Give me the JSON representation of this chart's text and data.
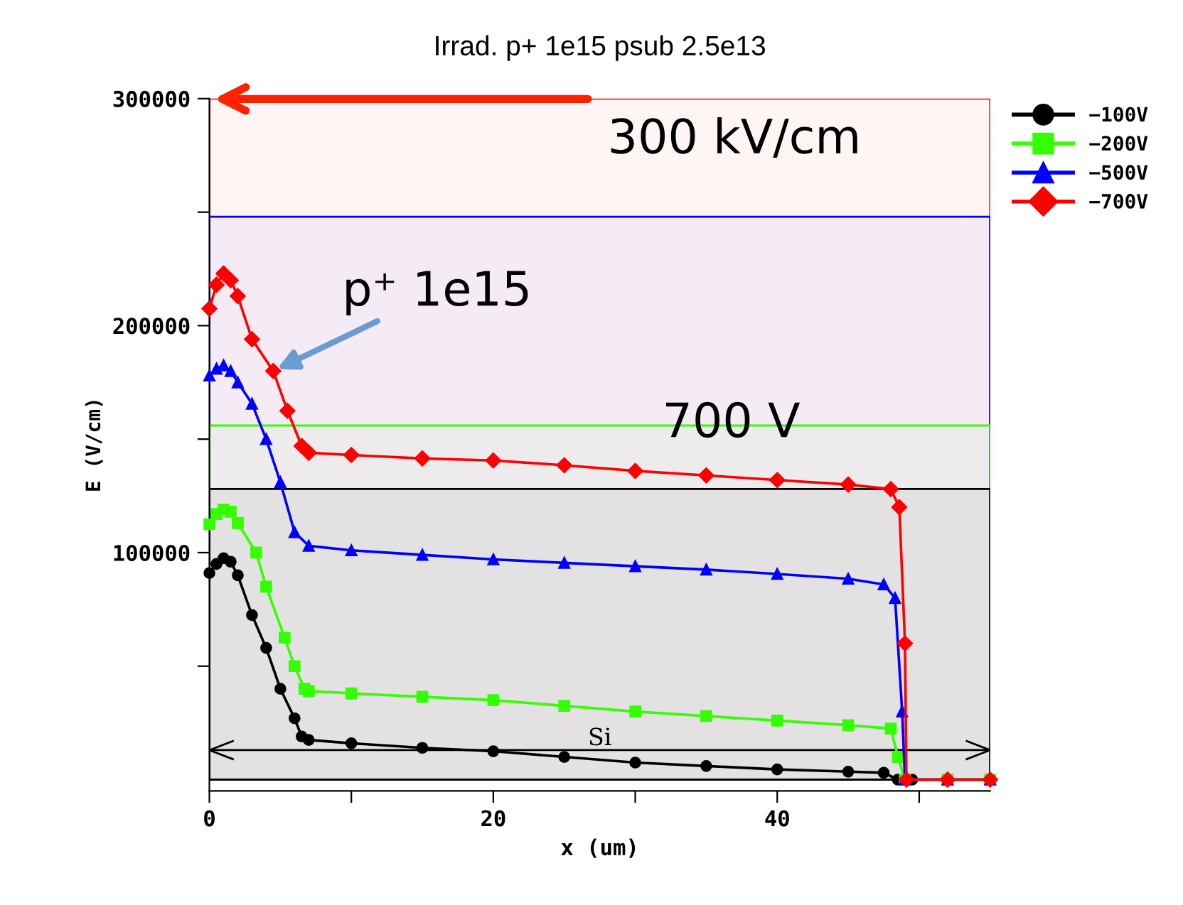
{
  "chart_data": {
    "type": "line",
    "title": "Irrad. p+ 1e15 psub 2.5e13",
    "xlabel": "x (um)",
    "ylabel": "E (V/cm)",
    "xlim": [
      0,
      55
    ],
    "ylim": [
      -5000,
      300000
    ],
    "xticks": [
      0,
      {
        "value": 10,
        "label": null
      },
      20,
      {
        "value": 30,
        "label": null
      },
      40,
      {
        "value": 50,
        "label": null
      }
    ],
    "yticks": [
      {
        "value": 50000,
        "label": null
      },
      100000,
      {
        "value": 150000,
        "label": null
      },
      200000,
      {
        "value": 250000,
        "label": null
      },
      300000
    ],
    "grid": false,
    "legend": "top right",
    "series": [
      {
        "name": "−100V",
        "color": "#000000",
        "marker": "circle",
        "x": [
          0,
          0.5,
          1,
          1.5,
          2,
          3,
          4,
          5,
          6,
          6.5,
          7,
          10,
          15,
          20,
          25,
          30,
          35,
          40,
          45,
          47.5,
          48.5,
          49.5,
          52,
          55
        ],
        "values": [
          91000,
          95000,
          97500,
          96000,
          90000,
          72500,
          58000,
          40000,
          27000,
          19000,
          17500,
          16000,
          14000,
          12500,
          10000,
          7500,
          6000,
          4500,
          3500,
          3000,
          0,
          0,
          0,
          0
        ]
      },
      {
        "name": "−200V",
        "color": "#33ff00",
        "marker": "square",
        "x": [
          0,
          0.5,
          1,
          1.5,
          2,
          3.3,
          4,
          5.3,
          6,
          6.7,
          7,
          10,
          15,
          20,
          25,
          30,
          35,
          40,
          45,
          48,
          48.5,
          49,
          52,
          55
        ],
        "values": [
          112500,
          117000,
          119000,
          118000,
          113000,
          100000,
          85000,
          62500,
          50000,
          40000,
          39000,
          38000,
          36500,
          35000,
          32500,
          30000,
          28000,
          26000,
          24000,
          22500,
          10000,
          0,
          0,
          0
        ]
      },
      {
        "name": "−500V",
        "color": "#0000ff",
        "marker": "triangle",
        "x": [
          0,
          0.5,
          1,
          1.5,
          2,
          3,
          4,
          5,
          6,
          7,
          10,
          15,
          20,
          25,
          30,
          35,
          40,
          45,
          47.5,
          48.3,
          48.8,
          49,
          52,
          55
        ],
        "values": [
          178000,
          181000,
          182500,
          180000,
          175000,
          165600,
          150000,
          131000,
          109000,
          103000,
          101000,
          99000,
          97000,
          95500,
          94000,
          92500,
          90600,
          88500,
          86000,
          80000,
          30000,
          0,
          0,
          0
        ]
      },
      {
        "name": "−700V",
        "color": "#ff0000",
        "marker": "diamond",
        "x": [
          0,
          0.5,
          1,
          1.5,
          2,
          3,
          4.5,
          5.5,
          6.5,
          7,
          10,
          15,
          20,
          25,
          30,
          35,
          40,
          45,
          48,
          48.6,
          49,
          49.1,
          52,
          55
        ],
        "values": [
          207500,
          218000,
          223000,
          220000,
          213000,
          194000,
          180000,
          162500,
          147000,
          144000,
          143000,
          141500,
          140600,
          138500,
          136000,
          134000,
          132000,
          130000,
          128000,
          120000,
          60000,
          0,
          0,
          0
        ]
      }
    ],
    "bands": [
      {
        "axis": "y",
        "from": 0,
        "to": 300000,
        "color": "#ff0000"
      },
      {
        "axis": "y",
        "from": 0,
        "to": 248000,
        "color": "#0000ff"
      },
      {
        "axis": "y",
        "from": 0,
        "to": 156000,
        "color": "#33ff00"
      },
      {
        "axis": "y",
        "from": 0,
        "to": 128000,
        "color": "#000000"
      }
    ],
    "annotations": [
      "300 kV/cm",
      {
        "text": "p⁺ 1e15",
        "x": 4.5,
        "y": 180000
      },
      "700 V"
    ],
    "ref_lines": [
      {
        "axis": "y",
        "value": 13000,
        "label": "Si",
        "color": "#000000"
      }
    ]
  }
}
